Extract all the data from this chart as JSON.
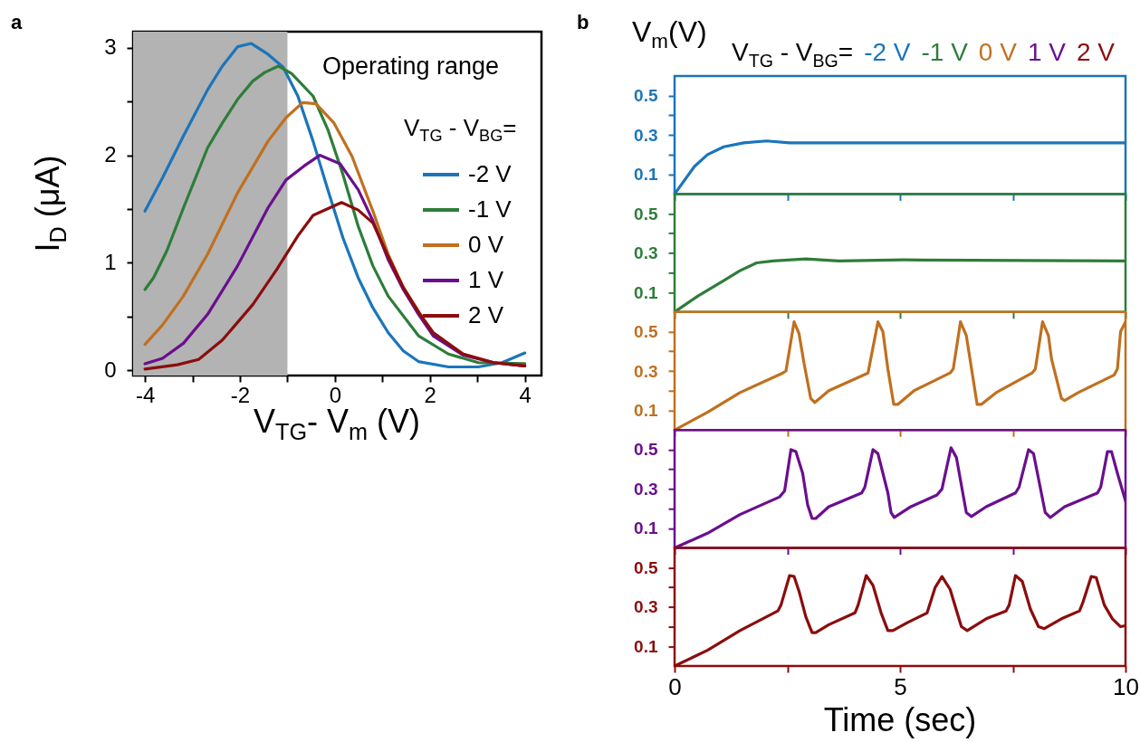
{
  "chart_data": [
    {
      "type": "line",
      "xlabel": "V$_{TG}$- V$_{m}$ (V)",
      "ylabel": "I$_{D}$ (μA)",
      "legend_title": "V$_{TG}$ - V$_{BG}$=",
      "legend": "right",
      "annotations": [
        "a",
        "Operating range"
      ],
      "xlim": [
        -4.25,
        4.35
      ],
      "ylim": [
        -0.05,
        3.15
      ],
      "xticks": [
        -4,
        {
          "value": -3,
          "label": null
        },
        -2,
        {
          "value": -1,
          "label": null
        },
        0,
        {
          "value": 1,
          "label": null
        },
        2,
        {
          "value": 3,
          "label": null
        },
        4
      ],
      "yticks": [
        0,
        {
          "value": 0.5,
          "label": null
        },
        1,
        {
          "value": 1.5,
          "label": null
        },
        2,
        {
          "value": 2.5,
          "label": null
        },
        3
      ],
      "bands": [
        {
          "axis": "x",
          "from": -4.25,
          "to": -1,
          "color": "#b3b3b3"
        }
      ],
      "series": [
        {
          "name": "-2 V",
          "color": "#1b75bb",
          "x": [
            -4,
            -3.63,
            -3.19,
            -2.68,
            -2.37,
            -2.05,
            -1.76,
            -1.41,
            -1.09,
            -0.78,
            -0.46,
            -0.15,
            0.17,
            0.49,
            0.8,
            1.12,
            1.44,
            1.76,
            2.39,
            3.02,
            3.52,
            4
          ],
          "values": [
            1.48,
            1.79,
            2.18,
            2.61,
            2.83,
            3.01,
            3.04,
            2.94,
            2.82,
            2.55,
            2.13,
            1.68,
            1.23,
            0.86,
            0.58,
            0.35,
            0.18,
            0.08,
            0.03,
            0.03,
            0.07,
            0.16
          ]
        },
        {
          "name": "-1 V",
          "color": "#2e7d3a",
          "x": [
            -4,
            -3.82,
            -3.54,
            -3.19,
            -2.68,
            -2.37,
            -2.05,
            -1.73,
            -1.48,
            -1.19,
            -0.91,
            -0.46,
            -0.15,
            0.17,
            0.49,
            0.8,
            1.12,
            1.76,
            2.39,
            3.02,
            4
          ],
          "values": [
            0.75,
            0.86,
            1.11,
            1.51,
            2.07,
            2.3,
            2.52,
            2.69,
            2.77,
            2.83,
            2.76,
            2.55,
            2.24,
            1.82,
            1.34,
            0.97,
            0.69,
            0.32,
            0.15,
            0.07,
            0.06
          ]
        },
        {
          "name": "0 V",
          "color": "#c0701f",
          "x": [
            -4,
            -3.63,
            -3.19,
            -2.68,
            -2.05,
            -1.41,
            -1.03,
            -0.68,
            -0.4,
            -0.02,
            0.36,
            0.8,
            1.12,
            1.44,
            1.76,
            2.07,
            2.7,
            3.34,
            4
          ],
          "values": [
            0.24,
            0.42,
            0.69,
            1.08,
            1.65,
            2.13,
            2.35,
            2.49,
            2.48,
            2.3,
            1.99,
            1.48,
            1.08,
            0.77,
            0.55,
            0.32,
            0.15,
            0.07,
            0.04
          ]
        },
        {
          "name": "1 V",
          "color": "#6a0f8e",
          "x": [
            -4,
            -3.63,
            -3.19,
            -2.68,
            -2.05,
            -1.41,
            -1.03,
            -0.65,
            -0.32,
            0.11,
            0.49,
            0.8,
            1.12,
            1.44,
            1.76,
            2.07,
            2.7,
            3.34,
            4
          ],
          "values": [
            0.06,
            0.11,
            0.25,
            0.52,
            0.97,
            1.51,
            1.77,
            1.9,
            2.0,
            1.92,
            1.68,
            1.39,
            1.03,
            0.75,
            0.52,
            0.32,
            0.14,
            0.07,
            0.04
          ]
        },
        {
          "name": "2 V",
          "color": "#8b0d0d",
          "x": [
            -4,
            -3.32,
            -2.87,
            -2.37,
            -1.73,
            -1.22,
            -0.78,
            -0.46,
            0.14,
            0.49,
            0.8,
            1.12,
            1.44,
            1.76,
            2.07,
            2.7,
            3.34,
            4
          ],
          "values": [
            0.01,
            0.05,
            0.1,
            0.28,
            0.61,
            0.94,
            1.25,
            1.44,
            1.56,
            1.49,
            1.37,
            1.06,
            0.77,
            0.54,
            0.35,
            0.15,
            0.07,
            0.04
          ]
        }
      ]
    },
    {
      "type": "line",
      "ylabel": "V$_{m}$(V)",
      "legend_title": "V$_{TG}$ - V$_{BG}$=",
      "legend": "top",
      "annotations": [
        "b"
      ],
      "tick_labels": "y",
      "xlim": [
        0,
        10
      ],
      "ylim": [
        0,
        0.6
      ],
      "xticks": [
        0,
        {
          "value": 2.5,
          "label": null
        },
        5,
        {
          "value": 7.5,
          "label": null
        },
        10
      ],
      "yticks": [
        0.1,
        {
          "value": 0.2,
          "label": null
        },
        0.3,
        {
          "value": 0.4,
          "label": null
        },
        0.5
      ],
      "series": [
        {
          "name": "-2 V",
          "color": "#1b75bb",
          "x": [
            0,
            0.44,
            0.73,
            1.09,
            1.53,
            2.04,
            2.55,
            4,
            6,
            8,
            10
          ],
          "values": [
            0,
            0.14,
            0.2,
            0.24,
            0.26,
            0.27,
            0.26,
            0.26,
            0.26,
            0.26,
            0.26
          ]
        }
      ]
    },
    {
      "type": "line",
      "legend": "top",
      "tick_labels": "y",
      "xlim": [
        0,
        10
      ],
      "ylim": [
        0,
        0.6
      ],
      "xticks": [
        0,
        {
          "value": 2.5,
          "label": null
        },
        5,
        {
          "value": 7.5,
          "label": null
        },
        10
      ],
      "yticks": [
        0.1,
        {
          "value": 0.2,
          "label": null
        },
        0.3,
        {
          "value": 0.4,
          "label": null
        },
        0.5
      ],
      "series": [
        {
          "name": "-1 V",
          "color": "#2e7d3a",
          "x": [
            0,
            0.51,
            1.09,
            1.45,
            1.82,
            2.18,
            2.91,
            3.64,
            5.09,
            10
          ],
          "values": [
            0,
            0.08,
            0.16,
            0.21,
            0.25,
            0.26,
            0.27,
            0.26,
            0.265,
            0.26
          ]
        }
      ]
    },
    {
      "type": "line",
      "legend": "top",
      "tick_labels": "y",
      "xlim": [
        0,
        10
      ],
      "ylim": [
        0,
        0.6
      ],
      "xticks": [
        0,
        {
          "value": 2.5,
          "label": null
        },
        5,
        {
          "value": 7.5,
          "label": null
        },
        10
      ],
      "yticks": [
        0.1,
        {
          "value": 0.2,
          "label": null
        },
        0.3,
        {
          "value": 0.4,
          "label": null
        },
        0.5
      ],
      "series": [
        {
          "name": "0 V",
          "color": "#c0701f",
          "x": [
            0,
            0.73,
            1.45,
            2.4,
            2.47,
            2.65,
            2.76,
            2.87,
            3.02,
            3.11,
            3.42,
            4.0,
            4.29,
            4.51,
            4.62,
            4.73,
            4.86,
            4.95,
            5.31,
            6.11,
            6.18,
            6.34,
            6.47,
            6.71,
            6.8,
            7.13,
            7.93,
            8.0,
            8.16,
            8.29,
            8.36,
            8.58,
            8.65,
            8.95,
            9.75,
            9.82,
            9.89,
            10
          ],
          "values": [
            0,
            0.09,
            0.19,
            0.29,
            0.3,
            0.55,
            0.49,
            0.34,
            0.16,
            0.14,
            0.2,
            0.26,
            0.29,
            0.55,
            0.5,
            0.31,
            0.13,
            0.13,
            0.2,
            0.29,
            0.31,
            0.55,
            0.48,
            0.13,
            0.13,
            0.19,
            0.29,
            0.31,
            0.55,
            0.48,
            0.36,
            0.16,
            0.15,
            0.19,
            0.28,
            0.31,
            0.5,
            0.55
          ]
        }
      ]
    },
    {
      "type": "line",
      "legend": "top",
      "tick_labels": "y",
      "xlim": [
        0,
        10
      ],
      "ylim": [
        0,
        0.6
      ],
      "xticks": [
        0,
        {
          "value": 2.5,
          "label": null
        },
        5,
        {
          "value": 7.5,
          "label": null
        },
        10
      ],
      "yticks": [
        0.1,
        {
          "value": 0.2,
          "label": null
        },
        0.3,
        {
          "value": 0.4,
          "label": null
        },
        0.5
      ],
      "series": [
        {
          "name": "1 V",
          "color": "#6a0f8e",
          "x": [
            0,
            0.73,
            1.45,
            2.33,
            2.44,
            2.58,
            2.69,
            2.84,
            2.95,
            3.05,
            3.13,
            3.42,
            4.15,
            4.22,
            4.4,
            4.51,
            4.73,
            4.8,
            4.87,
            5.24,
            5.82,
            5.93,
            6.13,
            6.25,
            6.47,
            6.58,
            6.91,
            7.56,
            7.64,
            7.85,
            7.96,
            8.22,
            8.33,
            8.65,
            9.38,
            9.45,
            9.6,
            9.69,
            9.82,
            10
          ],
          "values": [
            0,
            0.075,
            0.17,
            0.26,
            0.29,
            0.5,
            0.49,
            0.38,
            0.22,
            0.15,
            0.15,
            0.21,
            0.28,
            0.31,
            0.5,
            0.48,
            0.28,
            0.18,
            0.155,
            0.21,
            0.27,
            0.3,
            0.51,
            0.46,
            0.18,
            0.16,
            0.21,
            0.28,
            0.31,
            0.5,
            0.48,
            0.18,
            0.155,
            0.21,
            0.28,
            0.31,
            0.49,
            0.49,
            0.38,
            0.24
          ]
        }
      ]
    },
    {
      "type": "line",
      "legend": "top",
      "xlabel": "Time (sec)",
      "xlim": [
        0,
        10
      ],
      "ylim": [
        0,
        0.6
      ],
      "xticks": [
        0,
        {
          "value": 2.5,
          "label": null
        },
        5,
        {
          "value": 7.5,
          "label": null
        },
        10
      ],
      "yticks": [
        0.1,
        {
          "value": 0.2,
          "label": null
        },
        0.3,
        {
          "value": 0.4,
          "label": null
        },
        0.5
      ],
      "series": [
        {
          "name": "2 V",
          "color": "#8b0d0d",
          "x": [
            0,
            0.73,
            1.45,
            2.29,
            2.36,
            2.55,
            2.65,
            2.76,
            2.91,
            3.05,
            3.13,
            3.42,
            4.0,
            4.07,
            4.25,
            4.4,
            4.58,
            4.73,
            4.84,
            5.16,
            5.6,
            5.78,
            5.93,
            6.11,
            6.36,
            6.49,
            6.91,
            7.35,
            7.42,
            7.56,
            7.71,
            7.89,
            8.07,
            8.2,
            8.58,
            8.98,
            9.05,
            9.24,
            9.35,
            9.53,
            9.71,
            9.89,
            10
          ],
          "values": [
            0,
            0.08,
            0.18,
            0.28,
            0.31,
            0.46,
            0.455,
            0.38,
            0.25,
            0.17,
            0.17,
            0.21,
            0.27,
            0.31,
            0.46,
            0.41,
            0.27,
            0.18,
            0.18,
            0.22,
            0.27,
            0.4,
            0.455,
            0.39,
            0.2,
            0.18,
            0.24,
            0.28,
            0.31,
            0.46,
            0.43,
            0.29,
            0.2,
            0.19,
            0.24,
            0.28,
            0.32,
            0.455,
            0.45,
            0.31,
            0.24,
            0.2,
            0.205
          ]
        }
      ]
    }
  ]
}
